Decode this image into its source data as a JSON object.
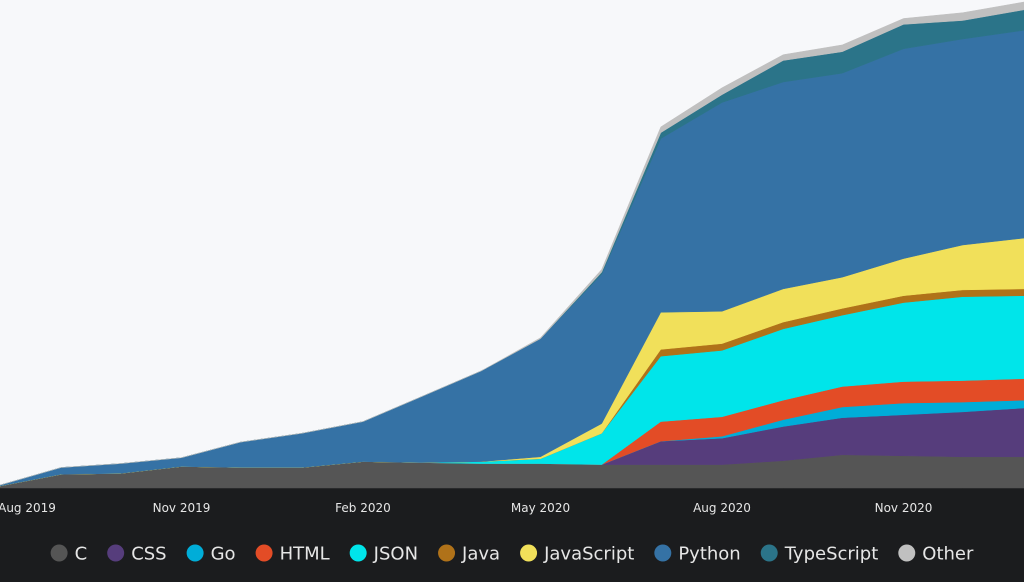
{
  "chart_data": {
    "type": "area",
    "stacked": true,
    "x": [
      "2019-08-01",
      "2019-09-01",
      "2019-10-01",
      "2019-11-01",
      "2019-12-01",
      "2020-01-01",
      "2020-02-01",
      "2020-03-01",
      "2020-04-01",
      "2020-05-01",
      "2020-06-01",
      "2020-07-01",
      "2020-08-01",
      "2020-09-01",
      "2020-10-01",
      "2020-11-01",
      "2020-12-01",
      "2021-01-01"
    ],
    "x_ticks": [
      {
        "label": "Aug 2019",
        "date": "2019-08-01"
      },
      {
        "label": "Nov 2019",
        "date": "2019-11-01"
      },
      {
        "label": "Feb 2020",
        "date": "2020-02-01"
      },
      {
        "label": "May 2020",
        "date": "2020-05-01"
      },
      {
        "label": "Aug 2020",
        "date": "2020-08-01"
      },
      {
        "label": "Nov 2020",
        "date": "2020-11-01"
      }
    ],
    "ylim": [
      0,
      500
    ],
    "y_axis_visible": false,
    "grid": false,
    "legend_position": "bottom",
    "series": [
      {
        "name": "C",
        "color": "#555555",
        "values": [
          2,
          14,
          15,
          22,
          21,
          21,
          27,
          26,
          25,
          25,
          24,
          24,
          24,
          28,
          34,
          33,
          32,
          32
        ]
      },
      {
        "name": "CSS",
        "color": "#563d7c",
        "values": [
          0,
          0,
          0,
          0,
          0,
          0,
          0,
          0,
          0,
          0,
          0,
          24,
          27,
          35,
          38,
          42,
          46,
          50
        ]
      },
      {
        "name": "Go",
        "color": "#00add8",
        "values": [
          0,
          0,
          0,
          0,
          0,
          0,
          0,
          0,
          0,
          0,
          0,
          0,
          2,
          7,
          11,
          12,
          10,
          8
        ]
      },
      {
        "name": "HTML",
        "color": "#e34c26",
        "values": [
          0,
          0,
          0,
          0,
          0,
          0,
          0,
          0,
          0,
          0,
          0,
          20,
          20,
          20,
          21,
          22,
          22,
          22
        ]
      },
      {
        "name": "JSON",
        "color": "#00e5ea",
        "values": [
          0,
          0,
          0,
          0,
          0,
          0,
          0,
          0,
          2,
          5,
          32,
          67,
          68,
          73,
          73,
          81,
          86,
          85
        ]
      },
      {
        "name": "Java",
        "color": "#b07219",
        "values": [
          0,
          0,
          0,
          0,
          0,
          0,
          0,
          0,
          0,
          0,
          0,
          7,
          7,
          7,
          7,
          7,
          7,
          7
        ]
      },
      {
        "name": "JavaScript",
        "color": "#f1e05a",
        "values": [
          0,
          0,
          0,
          0,
          0,
          0,
          0,
          0,
          0,
          2,
          10,
          38,
          33,
          34,
          32,
          38,
          46,
          52
        ]
      },
      {
        "name": "Python",
        "color": "#3572a5",
        "values": [
          1,
          7,
          10,
          9,
          26,
          35,
          41,
          67,
          93,
          121,
          153,
          178,
          214,
          212,
          209,
          215,
          211,
          213
        ]
      },
      {
        "name": "TypeScript",
        "color": "#2b7489",
        "values": [
          0,
          0,
          0,
          0,
          0,
          0,
          0,
          0,
          0,
          0,
          2,
          6,
          8,
          22,
          22,
          25,
          19,
          21
        ]
      },
      {
        "name": "Other",
        "color": "#c0c0c0",
        "values": [
          0,
          0,
          0,
          0,
          0,
          0,
          0,
          0,
          0,
          1,
          3,
          6,
          7,
          6,
          7,
          6,
          8,
          8
        ]
      }
    ]
  }
}
